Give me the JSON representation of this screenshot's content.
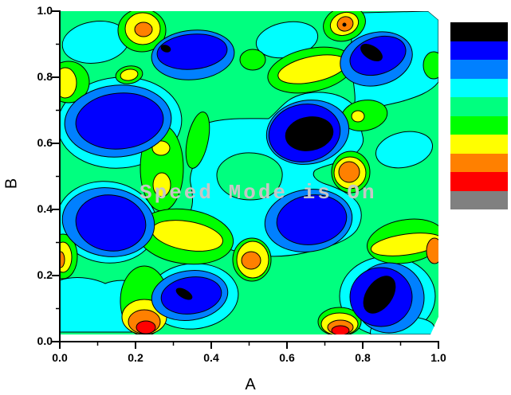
{
  "overlay": {
    "status_text": "Speed Mode is On"
  },
  "axes": {
    "x": {
      "label": "A",
      "ticks": [
        "0.0",
        "0.2",
        "0.4",
        "0.6",
        "0.8",
        "1.0"
      ]
    },
    "y": {
      "label": "B",
      "ticks": [
        "0.0",
        "0.2",
        "0.4",
        "0.6",
        "0.8",
        "1.0"
      ]
    }
  },
  "legend": {
    "colors_top_to_bottom": [
      "#000000",
      "#0000FF",
      "#0080FF",
      "#00FFFF",
      "#00FF7F",
      "#00FF00",
      "#FFFF00",
      "#FF8000",
      "#FF0000",
      "#808080"
    ],
    "color_names_top_to_bottom": [
      "black",
      "blue",
      "dodger-blue",
      "cyan",
      "spring-green",
      "green",
      "yellow",
      "orange",
      "red",
      "gray"
    ]
  },
  "chart_data": {
    "type": "contour",
    "title": "",
    "xlabel": "A",
    "ylabel": "B",
    "xlim": [
      0.0,
      1.0
    ],
    "ylim": [
      0.0,
      1.0
    ],
    "x_ticks": [
      0.0,
      0.2,
      0.4,
      0.6,
      0.8,
      1.0
    ],
    "y_ticks": [
      0.0,
      0.2,
      0.4,
      0.6,
      0.8,
      1.0
    ],
    "grid": false,
    "legend_position": "right",
    "fill_palette_legend_top_to_bottom": [
      "#000000",
      "#0000FF",
      "#0080FF",
      "#00FFFF",
      "#00FF7F",
      "#00FF00",
      "#FFFF00",
      "#FF8000",
      "#FF0000",
      "#808080"
    ],
    "background_level_color": "#00FF7F",
    "watermark_text": "Speed Mode is On",
    "cool_basins": [
      {
        "x": 0.35,
        "y": 0.88,
        "core": "blue-with-small-black-spot"
      },
      {
        "x": 0.82,
        "y": 0.88,
        "core": "black"
      },
      {
        "x": 0.16,
        "y": 0.67,
        "core": "blue"
      },
      {
        "x": 0.66,
        "y": 0.63,
        "core": "black"
      },
      {
        "x": 0.14,
        "y": 0.36,
        "core": "blue"
      },
      {
        "x": 0.66,
        "y": 0.37,
        "core": "blue"
      },
      {
        "x": 0.33,
        "y": 0.14,
        "core": "black-sliver"
      },
      {
        "x": 0.84,
        "y": 0.14,
        "core": "black"
      }
    ],
    "warm_peaks": [
      {
        "x": 0.22,
        "y": 0.94,
        "core": "orange"
      },
      {
        "x": 0.75,
        "y": 0.96,
        "core": "orange-with-black-dot"
      },
      {
        "x": 0.02,
        "y": 0.78,
        "core": "yellow"
      },
      {
        "x": 0.18,
        "y": 0.81,
        "core": "yellow"
      },
      {
        "x": 0.67,
        "y": 0.82,
        "core": "yellow-band"
      },
      {
        "x": 0.27,
        "y": 0.59,
        "core": "yellow"
      },
      {
        "x": 0.27,
        "y": 0.47,
        "core": "yellow"
      },
      {
        "x": 0.34,
        "y": 0.32,
        "core": "yellow-band"
      },
      {
        "x": 0.0,
        "y": 0.25,
        "core": "orange"
      },
      {
        "x": 0.51,
        "y": 0.25,
        "core": "orange"
      },
      {
        "x": 0.76,
        "y": 0.51,
        "core": "orange"
      },
      {
        "x": 0.79,
        "y": 0.68,
        "core": "yellow"
      },
      {
        "x": 0.23,
        "y": 0.04,
        "core": "red"
      },
      {
        "x": 0.74,
        "y": 0.03,
        "core": "red"
      },
      {
        "x": 0.99,
        "y": 0.27,
        "core": "orange"
      }
    ]
  }
}
